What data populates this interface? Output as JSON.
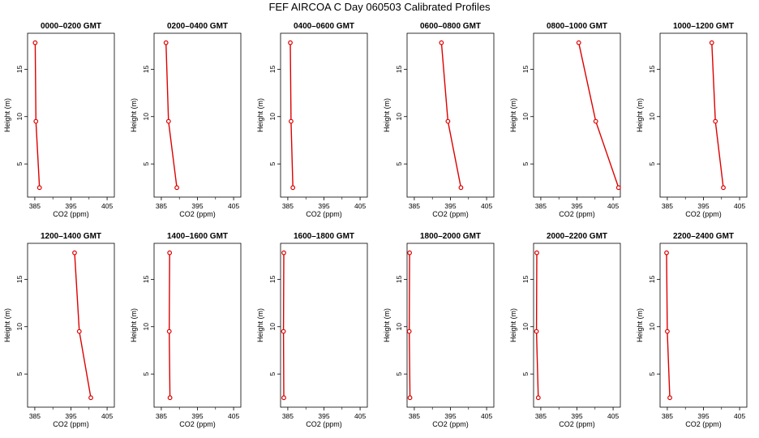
{
  "figure_title": "FEF AIRCOA C  Day 060503  Calibrated Profiles",
  "colors": {
    "line": "#dd0000",
    "axes": "#000000"
  },
  "chart_data": [
    {
      "type": "line",
      "title": "0000–0200 GMT",
      "xlabel": "CO2 (ppm)",
      "ylabel": "Height (m)",
      "xlim": [
        383,
        407
      ],
      "ylim": [
        1.5,
        18.8
      ],
      "xticks": [
        385,
        395,
        405
      ],
      "yticks": [
        5,
        10,
        15
      ],
      "series": [
        {
          "x": [
            385.1,
            385.3,
            386.3
          ],
          "y": [
            17.8,
            9.5,
            2.5
          ]
        }
      ]
    },
    {
      "type": "line",
      "title": "0200–0400 GMT",
      "xlabel": "CO2 (ppm)",
      "ylabel": "Height (m)",
      "xlim": [
        383,
        407
      ],
      "ylim": [
        1.5,
        18.8
      ],
      "xticks": [
        385,
        395,
        405
      ],
      "yticks": [
        5,
        10,
        15
      ],
      "series": [
        {
          "x": [
            386.3,
            387.0,
            389.3
          ],
          "y": [
            17.8,
            9.5,
            2.5
          ]
        }
      ]
    },
    {
      "type": "line",
      "title": "0400–0600 GMT",
      "xlabel": "CO2 (ppm)",
      "ylabel": "Height (m)",
      "xlim": [
        383,
        407
      ],
      "ylim": [
        1.5,
        18.8
      ],
      "xticks": [
        385,
        395,
        405
      ],
      "yticks": [
        5,
        10,
        15
      ],
      "series": [
        {
          "x": [
            385.7,
            385.9,
            386.4
          ],
          "y": [
            17.8,
            9.5,
            2.5
          ]
        }
      ]
    },
    {
      "type": "line",
      "title": "0600–0800 GMT",
      "xlabel": "CO2 (ppm)",
      "ylabel": "Height (m)",
      "xlim": [
        383,
        407
      ],
      "ylim": [
        1.5,
        18.8
      ],
      "xticks": [
        385,
        395,
        405
      ],
      "yticks": [
        5,
        10,
        15
      ],
      "series": [
        {
          "x": [
            392.5,
            394.3,
            397.9
          ],
          "y": [
            17.8,
            9.5,
            2.5
          ]
        }
      ]
    },
    {
      "type": "line",
      "title": "0800–1000 GMT",
      "xlabel": "CO2 (ppm)",
      "ylabel": "Height (m)",
      "xlim": [
        383,
        407
      ],
      "ylim": [
        1.5,
        18.8
      ],
      "xticks": [
        385,
        395,
        405
      ],
      "yticks": [
        5,
        10,
        15
      ],
      "series": [
        {
          "x": [
            395.5,
            400.2,
            406.5
          ],
          "y": [
            17.8,
            9.5,
            2.5
          ]
        }
      ]
    },
    {
      "type": "line",
      "title": "1000–1200 GMT",
      "xlabel": "CO2 (ppm)",
      "ylabel": "Height (m)",
      "xlim": [
        383,
        407
      ],
      "ylim": [
        1.5,
        18.8
      ],
      "xticks": [
        385,
        395,
        405
      ],
      "yticks": [
        5,
        10,
        15
      ],
      "series": [
        {
          "x": [
            397.3,
            398.3,
            400.5
          ],
          "y": [
            17.8,
            9.5,
            2.5
          ]
        }
      ]
    },
    {
      "type": "line",
      "title": "1200–1400 GMT",
      "xlabel": "CO2 (ppm)",
      "ylabel": "Height (m)",
      "xlim": [
        383,
        407
      ],
      "ylim": [
        1.5,
        18.8
      ],
      "xticks": [
        385,
        395,
        405
      ],
      "yticks": [
        5,
        10,
        15
      ],
      "series": [
        {
          "x": [
            396.0,
            397.3,
            400.5
          ],
          "y": [
            17.8,
            9.5,
            2.5
          ]
        }
      ]
    },
    {
      "type": "line",
      "title": "1400–1600 GMT",
      "xlabel": "CO2 (ppm)",
      "ylabel": "Height (m)",
      "xlim": [
        383,
        407
      ],
      "ylim": [
        1.5,
        18.8
      ],
      "xticks": [
        385,
        395,
        405
      ],
      "yticks": [
        5,
        10,
        15
      ],
      "series": [
        {
          "x": [
            387.3,
            387.2,
            387.4
          ],
          "y": [
            17.8,
            9.5,
            2.5
          ]
        }
      ]
    },
    {
      "type": "line",
      "title": "1600–1800 GMT",
      "xlabel": "CO2 (ppm)",
      "ylabel": "Height (m)",
      "xlim": [
        383,
        407
      ],
      "ylim": [
        1.5,
        18.8
      ],
      "xticks": [
        385,
        395,
        405
      ],
      "yticks": [
        5,
        10,
        15
      ],
      "series": [
        {
          "x": [
            383.9,
            383.8,
            383.9
          ],
          "y": [
            17.8,
            9.5,
            2.5
          ]
        }
      ]
    },
    {
      "type": "line",
      "title": "1800–2000 GMT",
      "xlabel": "CO2 (ppm)",
      "ylabel": "Height (m)",
      "xlim": [
        383,
        407
      ],
      "ylim": [
        1.5,
        18.8
      ],
      "xticks": [
        385,
        395,
        405
      ],
      "yticks": [
        5,
        10,
        15
      ],
      "series": [
        {
          "x": [
            383.7,
            383.6,
            383.8
          ],
          "y": [
            17.8,
            9.5,
            2.5
          ]
        }
      ]
    },
    {
      "type": "line",
      "title": "2000–2200 GMT",
      "xlabel": "CO2 (ppm)",
      "ylabel": "Height (m)",
      "xlim": [
        383,
        407
      ],
      "ylim": [
        1.5,
        18.8
      ],
      "xticks": [
        385,
        395,
        405
      ],
      "yticks": [
        5,
        10,
        15
      ],
      "series": [
        {
          "x": [
            383.9,
            383.8,
            384.3
          ],
          "y": [
            17.8,
            9.5,
            2.5
          ]
        }
      ]
    },
    {
      "type": "line",
      "title": "2200–2400 GMT",
      "xlabel": "CO2 (ppm)",
      "ylabel": "Height (m)",
      "xlim": [
        383,
        407
      ],
      "ylim": [
        1.5,
        18.8
      ],
      "xticks": [
        385,
        395,
        405
      ],
      "yticks": [
        5,
        10,
        15
      ],
      "series": [
        {
          "x": [
            384.8,
            385.0,
            385.7
          ],
          "y": [
            17.8,
            9.5,
            2.5
          ]
        }
      ]
    }
  ]
}
